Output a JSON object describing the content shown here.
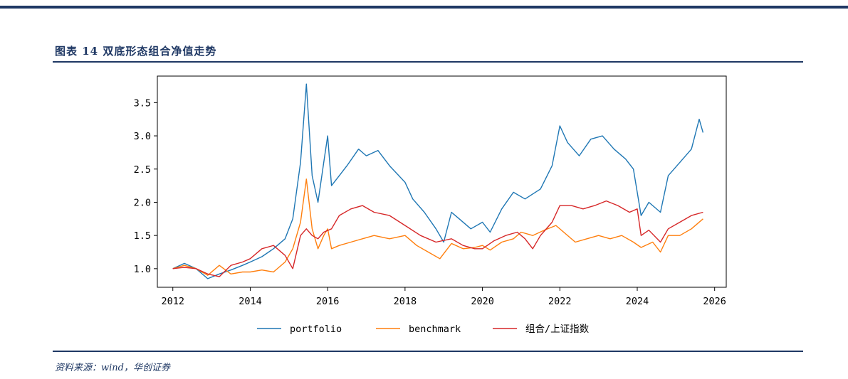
{
  "header": {
    "figure_title": "图表 14    双底形态组合净值走势"
  },
  "footer": {
    "source": "资料来源：wind，华创证券"
  },
  "chart_data": {
    "type": "line",
    "title": "双底形态组合净值走势",
    "xlabel": "",
    "ylabel": "",
    "xlim": [
      2011.6,
      2026.3
    ],
    "ylim": [
      0.72,
      3.9
    ],
    "x_ticks": [
      2012,
      2014,
      2016,
      2018,
      2020,
      2022,
      2024,
      2026
    ],
    "y_ticks": [
      1.0,
      1.5,
      2.0,
      2.5,
      3.0,
      3.5
    ],
    "y_tick_labels": [
      "1.0",
      "1.5",
      "2.0",
      "2.5",
      "3.0",
      "3.5"
    ],
    "grid": false,
    "legend_position": "bottom-center",
    "series": [
      {
        "name": "portfolio",
        "color": "#1f77b4",
        "points": [
          [
            2012.0,
            1.0
          ],
          [
            2012.3,
            1.08
          ],
          [
            2012.6,
            1.0
          ],
          [
            2012.9,
            0.85
          ],
          [
            2013.2,
            0.92
          ],
          [
            2013.5,
            0.98
          ],
          [
            2013.8,
            1.05
          ],
          [
            2014.0,
            1.1
          ],
          [
            2014.3,
            1.18
          ],
          [
            2014.6,
            1.3
          ],
          [
            2014.9,
            1.45
          ],
          [
            2015.1,
            1.75
          ],
          [
            2015.3,
            2.6
          ],
          [
            2015.45,
            3.78
          ],
          [
            2015.6,
            2.4
          ],
          [
            2015.75,
            2.0
          ],
          [
            2015.9,
            2.6
          ],
          [
            2016.0,
            3.0
          ],
          [
            2016.1,
            2.25
          ],
          [
            2016.3,
            2.4
          ],
          [
            2016.5,
            2.55
          ],
          [
            2016.8,
            2.8
          ],
          [
            2017.0,
            2.7
          ],
          [
            2017.3,
            2.78
          ],
          [
            2017.6,
            2.55
          ],
          [
            2018.0,
            2.3
          ],
          [
            2018.2,
            2.05
          ],
          [
            2018.5,
            1.85
          ],
          [
            2018.8,
            1.6
          ],
          [
            2019.0,
            1.4
          ],
          [
            2019.2,
            1.85
          ],
          [
            2019.4,
            1.75
          ],
          [
            2019.7,
            1.6
          ],
          [
            2020.0,
            1.7
          ],
          [
            2020.2,
            1.55
          ],
          [
            2020.5,
            1.9
          ],
          [
            2020.8,
            2.15
          ],
          [
            2021.1,
            2.05
          ],
          [
            2021.5,
            2.2
          ],
          [
            2021.8,
            2.55
          ],
          [
            2022.0,
            3.15
          ],
          [
            2022.2,
            2.9
          ],
          [
            2022.5,
            2.7
          ],
          [
            2022.8,
            2.95
          ],
          [
            2023.1,
            3.0
          ],
          [
            2023.4,
            2.8
          ],
          [
            2023.7,
            2.65
          ],
          [
            2023.9,
            2.5
          ],
          [
            2024.1,
            1.8
          ],
          [
            2024.3,
            2.0
          ],
          [
            2024.6,
            1.85
          ],
          [
            2024.8,
            2.4
          ],
          [
            2025.1,
            2.6
          ],
          [
            2025.4,
            2.8
          ],
          [
            2025.6,
            3.25
          ],
          [
            2025.7,
            3.05
          ]
        ]
      },
      {
        "name": "benchmark",
        "color": "#ff7f0e",
        "points": [
          [
            2012.0,
            1.0
          ],
          [
            2012.3,
            1.05
          ],
          [
            2012.6,
            1.0
          ],
          [
            2012.9,
            0.9
          ],
          [
            2013.2,
            1.05
          ],
          [
            2013.5,
            0.92
          ],
          [
            2013.8,
            0.95
          ],
          [
            2014.0,
            0.95
          ],
          [
            2014.3,
            0.98
          ],
          [
            2014.6,
            0.95
          ],
          [
            2014.9,
            1.1
          ],
          [
            2015.1,
            1.3
          ],
          [
            2015.3,
            1.7
          ],
          [
            2015.45,
            2.35
          ],
          [
            2015.6,
            1.6
          ],
          [
            2015.75,
            1.3
          ],
          [
            2015.9,
            1.5
          ],
          [
            2016.0,
            1.6
          ],
          [
            2016.1,
            1.3
          ],
          [
            2016.3,
            1.35
          ],
          [
            2016.6,
            1.4
          ],
          [
            2016.9,
            1.45
          ],
          [
            2017.2,
            1.5
          ],
          [
            2017.6,
            1.45
          ],
          [
            2018.0,
            1.5
          ],
          [
            2018.3,
            1.35
          ],
          [
            2018.6,
            1.25
          ],
          [
            2018.9,
            1.15
          ],
          [
            2019.2,
            1.38
          ],
          [
            2019.5,
            1.3
          ],
          [
            2019.8,
            1.32
          ],
          [
            2020.0,
            1.35
          ],
          [
            2020.2,
            1.28
          ],
          [
            2020.5,
            1.4
          ],
          [
            2020.8,
            1.45
          ],
          [
            2021.0,
            1.55
          ],
          [
            2021.3,
            1.5
          ],
          [
            2021.6,
            1.58
          ],
          [
            2021.9,
            1.65
          ],
          [
            2022.1,
            1.55
          ],
          [
            2022.4,
            1.4
          ],
          [
            2022.7,
            1.45
          ],
          [
            2023.0,
            1.5
          ],
          [
            2023.3,
            1.45
          ],
          [
            2023.6,
            1.5
          ],
          [
            2023.9,
            1.4
          ],
          [
            2024.1,
            1.32
          ],
          [
            2024.4,
            1.4
          ],
          [
            2024.6,
            1.25
          ],
          [
            2024.8,
            1.5
          ],
          [
            2025.1,
            1.5
          ],
          [
            2025.4,
            1.6
          ],
          [
            2025.7,
            1.75
          ]
        ]
      },
      {
        "name": "组合/上证指数",
        "color": "#d62728",
        "points": [
          [
            2012.0,
            1.0
          ],
          [
            2012.3,
            1.02
          ],
          [
            2012.6,
            1.0
          ],
          [
            2012.9,
            0.92
          ],
          [
            2013.2,
            0.88
          ],
          [
            2013.5,
            1.05
          ],
          [
            2013.8,
            1.1
          ],
          [
            2014.0,
            1.15
          ],
          [
            2014.3,
            1.3
          ],
          [
            2014.6,
            1.35
          ],
          [
            2014.9,
            1.2
          ],
          [
            2015.1,
            1.0
          ],
          [
            2015.3,
            1.5
          ],
          [
            2015.45,
            1.6
          ],
          [
            2015.6,
            1.5
          ],
          [
            2015.75,
            1.45
          ],
          [
            2015.9,
            1.55
          ],
          [
            2016.1,
            1.6
          ],
          [
            2016.3,
            1.8
          ],
          [
            2016.6,
            1.9
          ],
          [
            2016.9,
            1.95
          ],
          [
            2017.2,
            1.85
          ],
          [
            2017.6,
            1.8
          ],
          [
            2018.0,
            1.65
          ],
          [
            2018.4,
            1.5
          ],
          [
            2018.8,
            1.4
          ],
          [
            2019.2,
            1.45
          ],
          [
            2019.5,
            1.35
          ],
          [
            2019.8,
            1.3
          ],
          [
            2020.0,
            1.3
          ],
          [
            2020.3,
            1.42
          ],
          [
            2020.6,
            1.5
          ],
          [
            2020.9,
            1.55
          ],
          [
            2021.1,
            1.45
          ],
          [
            2021.3,
            1.3
          ],
          [
            2021.5,
            1.5
          ],
          [
            2021.8,
            1.7
          ],
          [
            2022.0,
            1.95
          ],
          [
            2022.3,
            1.95
          ],
          [
            2022.6,
            1.9
          ],
          [
            2022.9,
            1.95
          ],
          [
            2023.2,
            2.02
          ],
          [
            2023.5,
            1.95
          ],
          [
            2023.8,
            1.85
          ],
          [
            2024.0,
            1.9
          ],
          [
            2024.1,
            1.5
          ],
          [
            2024.3,
            1.58
          ],
          [
            2024.6,
            1.4
          ],
          [
            2024.8,
            1.6
          ],
          [
            2025.1,
            1.7
          ],
          [
            2025.4,
            1.8
          ],
          [
            2025.7,
            1.85
          ]
        ]
      }
    ]
  }
}
